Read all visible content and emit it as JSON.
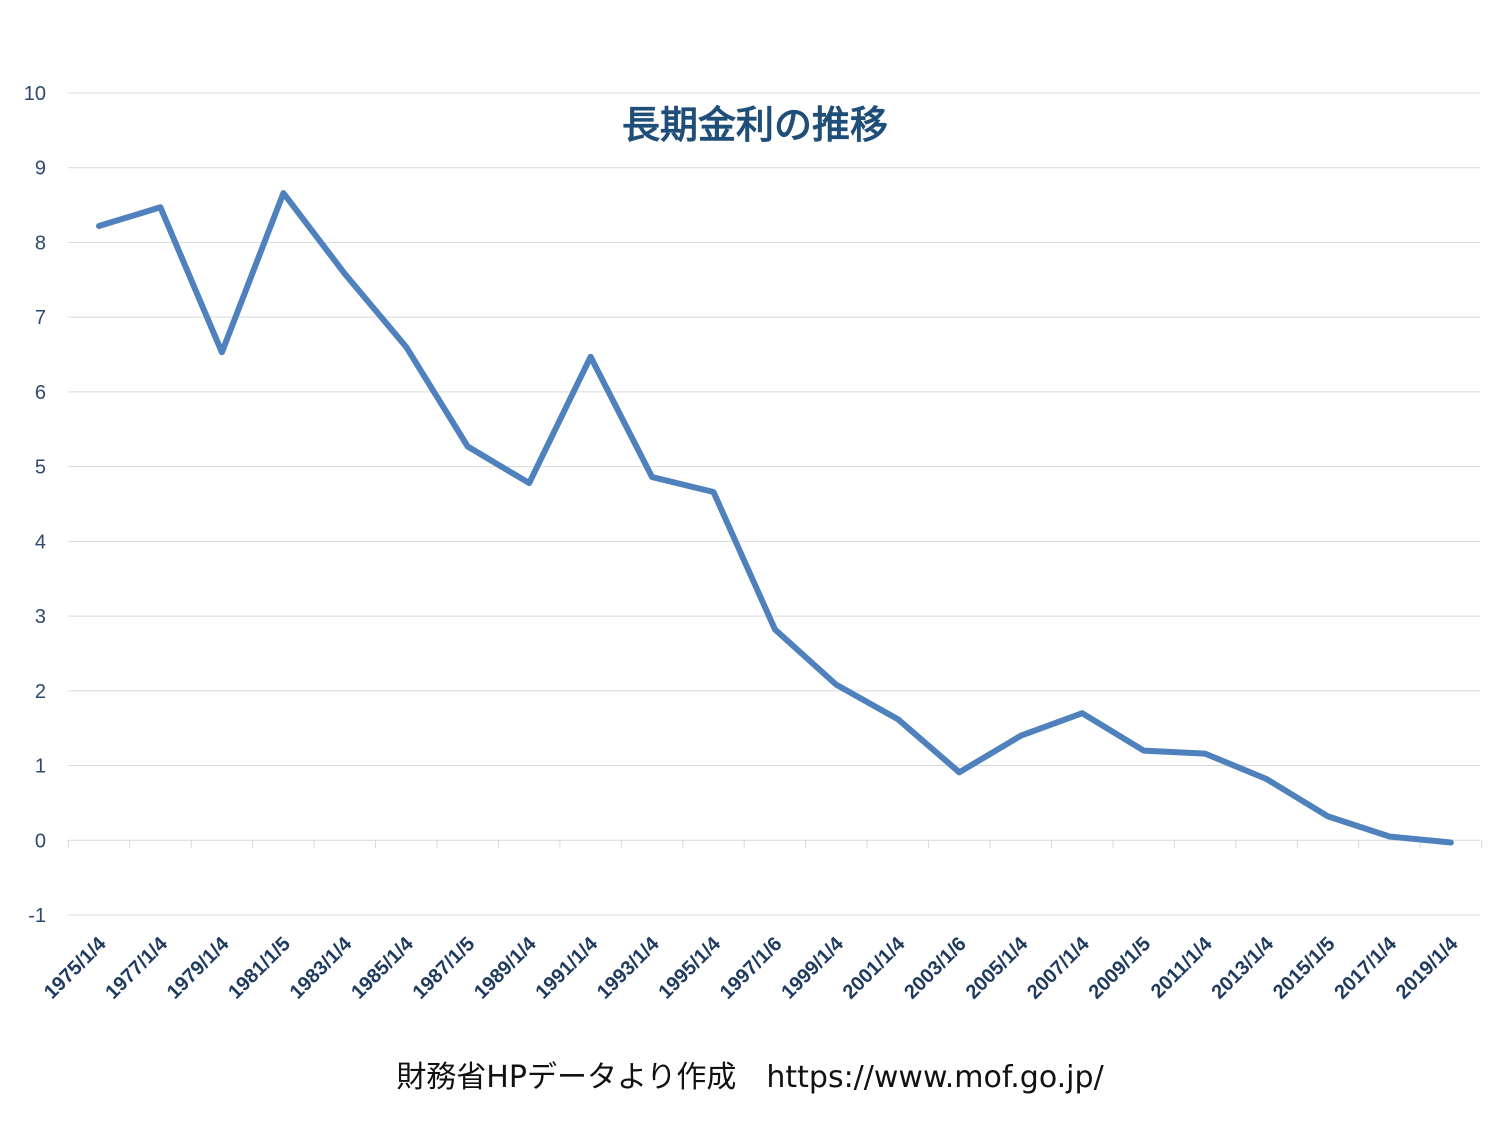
{
  "chart_data": {
    "type": "line",
    "title": "長期金利の推移",
    "xlabel": "",
    "ylabel": "",
    "ylim": [
      -1,
      10
    ],
    "y_ticks": [
      -1,
      0,
      1,
      2,
      3,
      4,
      5,
      6,
      7,
      8,
      9,
      10
    ],
    "grid": true,
    "legend": "none",
    "line_color": "#4f81bd",
    "categories": [
      "1975/1/4",
      "1977/1/4",
      "1979/1/4",
      "1981/1/5",
      "1983/1/4",
      "1985/1/4",
      "1987/1/5",
      "1989/1/4",
      "1991/1/4",
      "1993/1/4",
      "1995/1/4",
      "1997/1/6",
      "1999/1/4",
      "2001/1/4",
      "2003/1/6",
      "2005/1/4",
      "2007/1/4",
      "2009/1/5",
      "2011/1/4",
      "2013/1/4",
      "2015/1/5",
      "2017/1/4",
      "2019/1/4"
    ],
    "series": [
      {
        "values": [
          8.22,
          8.47,
          6.53,
          8.66,
          7.58,
          6.6,
          5.27,
          4.78,
          6.47,
          4.86,
          4.66,
          2.82,
          2.08,
          1.62,
          0.91,
          1.4,
          1.7,
          1.2,
          1.16,
          0.82,
          0.32,
          0.05,
          -0.03
        ]
      }
    ]
  },
  "footer": {
    "source_note": "財務省HPデータより作成　https://www.mof.go.jp/"
  }
}
